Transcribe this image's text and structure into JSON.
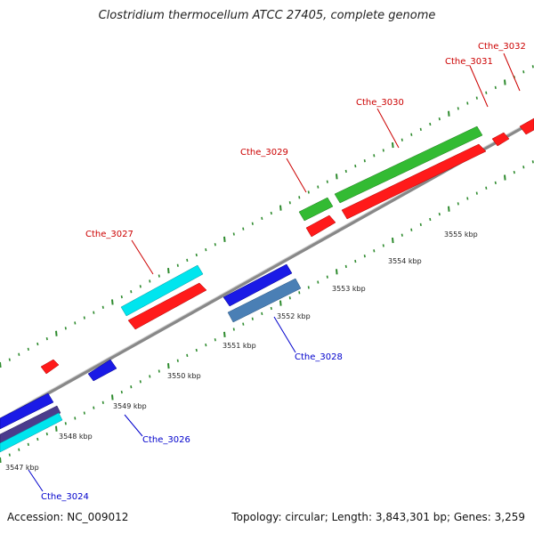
{
  "title": "Clostridium thermocellum ATCC 27405, complete genome",
  "footer": {
    "accession": "Accession: NC_009012",
    "summary": "Topology: circular; Length: 3,843,301 bp; Genes: 3,259"
  },
  "colors": {
    "backbone": "#8c8c8c",
    "ticks": "#2e8b2e",
    "forward_label": "#cc0000",
    "reverse_label": "#0000cc"
  },
  "scale_labels": [
    "3547 kbp",
    "3548 kbp",
    "3549 kbp",
    "3550 kbp",
    "3551 kbp",
    "3552 kbp",
    "3553 kbp",
    "3554 kbp",
    "3555 kbp"
  ],
  "gene_labels": {
    "forward": [
      "Cthe_3027",
      "Cthe_3029",
      "Cthe_3030",
      "Cthe_3031",
      "Cthe_3032"
    ],
    "reverse": [
      "Cthe_3024",
      "Cthe_3026",
      "Cthe_3028"
    ]
  }
}
